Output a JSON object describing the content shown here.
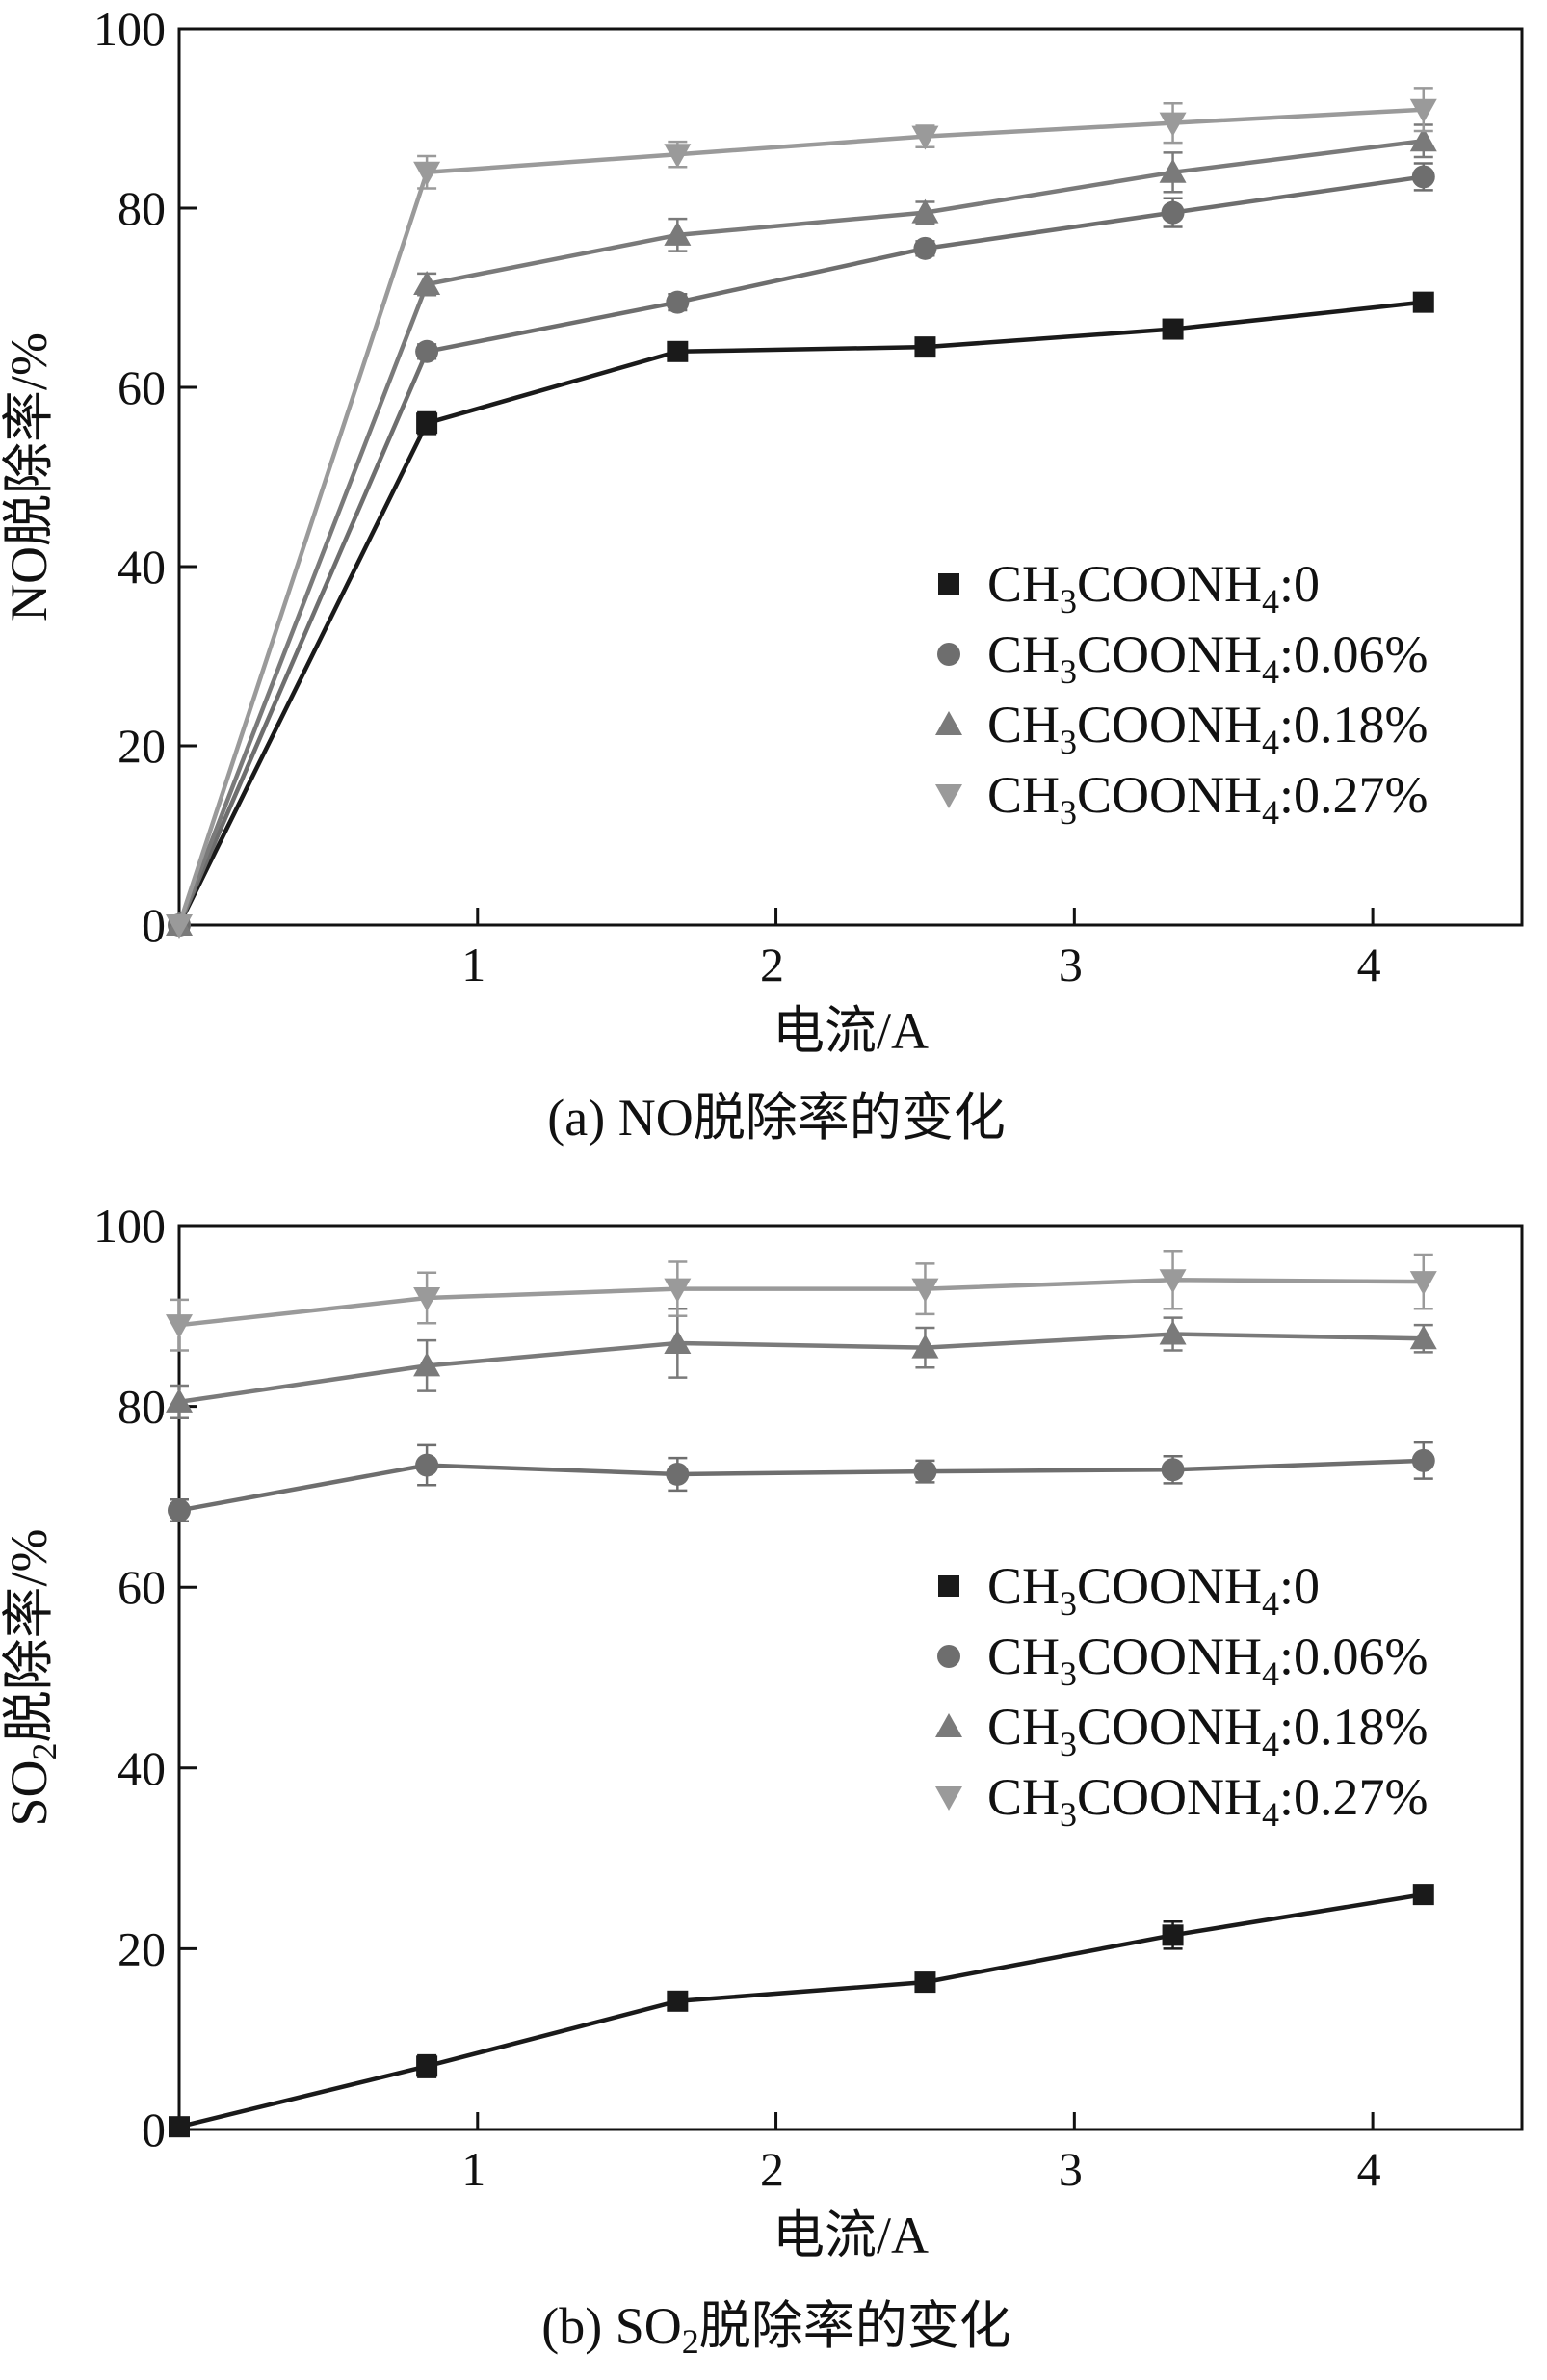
{
  "chart_data": [
    {
      "type": "line",
      "panel": "a",
      "caption": "(a) NO脱除率的变化",
      "xlabel": "电流/A",
      "ylabel": "NO脱除率/%",
      "xlim": [
        0,
        4.5
      ],
      "ylim": [
        0,
        100
      ],
      "x_ticks": [
        1,
        2,
        3,
        4
      ],
      "y_ticks": [
        0,
        20,
        40,
        60,
        80,
        100
      ],
      "x": [
        0,
        0.83,
        1.67,
        2.5,
        3.33,
        4.17
      ],
      "legend_position": "right-middle",
      "series": [
        {
          "name": "CH3COONH4:0",
          "label_main": "CH",
          "label_sub1": "3",
          "label_mid": "COONH",
          "label_sub2": "4",
          "label_tail": ":0",
          "marker": "square",
          "color": "#1a1a1a",
          "values": [
            0,
            56,
            64,
            64.5,
            66.5,
            69.5
          ],
          "errors": [
            0,
            1.2,
            0.6,
            0.6,
            0.8,
            0.6
          ]
        },
        {
          "name": "CH3COONH4:0.06%",
          "label_main": "CH",
          "label_sub1": "3",
          "label_mid": "COONH",
          "label_sub2": "4",
          "label_tail": ":0.06%",
          "marker": "circle",
          "color": "#6e6e6e",
          "values": [
            0,
            64,
            69.5,
            75.5,
            79.5,
            83.5
          ],
          "errors": [
            0,
            0.8,
            0.9,
            0.8,
            1.6,
            1.5
          ]
        },
        {
          "name": "CH3COONH4:0.18%",
          "label_main": "CH",
          "label_sub1": "3",
          "label_mid": "COONH",
          "label_sub2": "4",
          "label_tail": ":0.18%",
          "marker": "triangle-up",
          "color": "#7a7a7a",
          "values": [
            0,
            71.5,
            77,
            79.5,
            84,
            87.5
          ],
          "errors": [
            0,
            1.2,
            1.8,
            1.2,
            2.2,
            1.8
          ]
        },
        {
          "name": "CH3COONH4:0.27%",
          "label_main": "CH",
          "label_sub1": "3",
          "label_mid": "COONH",
          "label_sub2": "4",
          "label_tail": ":0.27%",
          "marker": "triangle-down",
          "color": "#9a9a9a",
          "values": [
            0,
            84,
            86,
            88,
            89.5,
            91
          ],
          "errors": [
            0,
            1.8,
            1.4,
            1.2,
            2.2,
            2.4
          ]
        }
      ]
    },
    {
      "type": "line",
      "panel": "b",
      "caption": "(b) SO2脱除率的变化",
      "caption_pre": "(b) SO",
      "caption_sub": "2",
      "caption_post": "脱除率的变化",
      "xlabel": "电流/A",
      "ylabel": "SO2脱除率/%",
      "ylabel_pre": "SO",
      "ylabel_sub": "2",
      "ylabel_post": "脱除率/%",
      "xlim": [
        0,
        4.5
      ],
      "ylim": [
        0,
        100
      ],
      "x_ticks": [
        1,
        2,
        3,
        4
      ],
      "y_ticks": [
        0,
        20,
        40,
        60,
        80,
        100
      ],
      "x": [
        0,
        0.83,
        1.67,
        2.5,
        3.33,
        4.17
      ],
      "legend_position": "right-middle",
      "series": [
        {
          "name": "CH3COONH4:0",
          "label_main": "CH",
          "label_sub1": "3",
          "label_mid": "COONH",
          "label_sub2": "4",
          "label_tail": ":0",
          "marker": "square",
          "color": "#1a1a1a",
          "values": [
            0.3,
            7,
            14.2,
            16.3,
            21.5,
            26
          ],
          "errors": [
            0,
            1.2,
            0.6,
            0.8,
            1.5,
            0.8
          ]
        },
        {
          "name": "CH3COONH4:0.06%",
          "label_main": "CH",
          "label_sub1": "3",
          "label_mid": "COONH",
          "label_sub2": "4",
          "label_tail": ":0.06%",
          "marker": "circle",
          "color": "#6e6e6e",
          "values": [
            68.5,
            73.5,
            72.5,
            72.8,
            73,
            74
          ],
          "errors": [
            1.2,
            2.2,
            1.8,
            1.2,
            1.5,
            2.0
          ]
        },
        {
          "name": "CH3COONH4:0.18%",
          "label_main": "CH",
          "label_sub1": "3",
          "label_mid": "COONH",
          "label_sub2": "4",
          "label_tail": ":0.18%",
          "marker": "triangle-up",
          "color": "#7a7a7a",
          "values": [
            80.5,
            84.5,
            87,
            86.5,
            88,
            87.5
          ],
          "errors": [
            1.8,
            2.8,
            3.8,
            2.2,
            1.8,
            1.5
          ]
        },
        {
          "name": "CH3COONH4:0.27%",
          "label_main": "CH",
          "label_sub1": "3",
          "label_mid": "COONH",
          "label_sub2": "4",
          "label_tail": ":0.27%",
          "marker": "triangle-down",
          "color": "#9a9a9a",
          "values": [
            89,
            92,
            93,
            93,
            94,
            93.8
          ],
          "errors": [
            2.8,
            2.8,
            3.0,
            2.8,
            3.2,
            3.0
          ]
        }
      ]
    }
  ]
}
